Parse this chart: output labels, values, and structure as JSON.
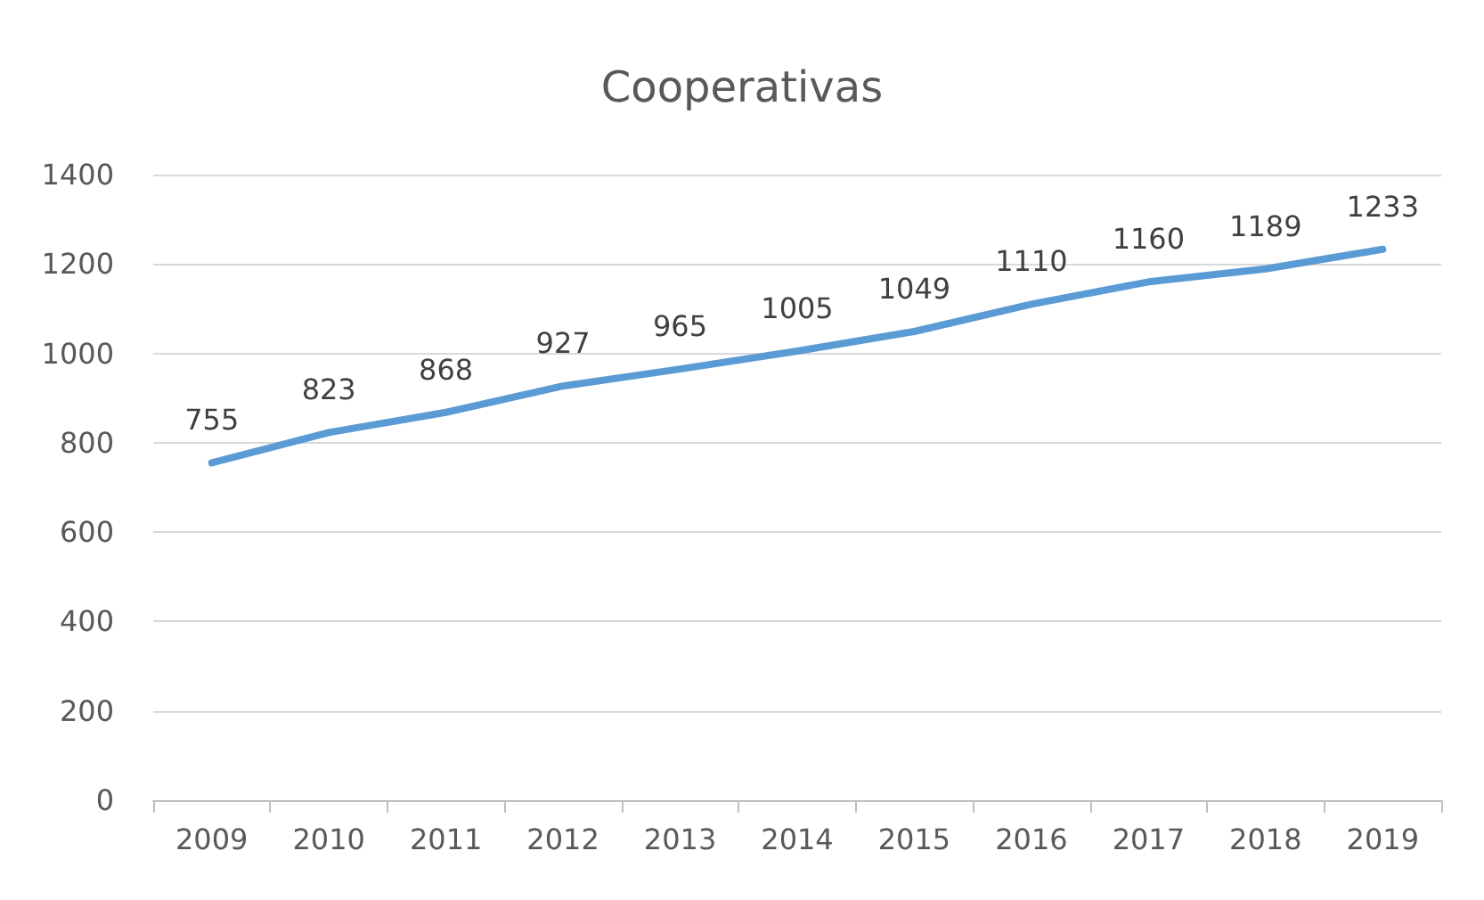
{
  "chart_data": {
    "type": "line",
    "title": "Cooperativas",
    "categories": [
      "2009",
      "2010",
      "2011",
      "2012",
      "2013",
      "2014",
      "2015",
      "2016",
      "2017",
      "2018",
      "2019"
    ],
    "series": [
      {
        "color": "#5b9bd5",
        "values": [
          755,
          823,
          868,
          927,
          965,
          1005,
          1049,
          1110,
          1160,
          1189,
          1233
        ]
      }
    ],
    "ylim": [
      0,
      1400
    ],
    "yticks": [
      0,
      200,
      400,
      600,
      800,
      1000,
      1200,
      1400
    ],
    "grid": "y",
    "data_labels": true,
    "marker": "none",
    "line_style": "solid"
  }
}
